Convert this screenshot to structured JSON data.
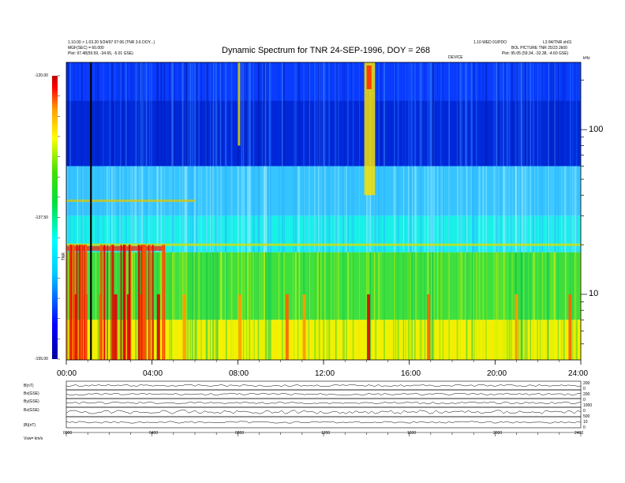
{
  "header": {
    "left_line1": "1.10.00 > 1.03.20 5/24/97 07:06 (TNR 3.6 DOY...)",
    "left_line2": "MGF(SEC) = 60.000",
    "left_line3": "Plot:  97.48(59.59, -34.65, -5.01 GSE)",
    "right_line1": "1.10 WED 01/PDO",
    "right_line2": "BOL PICTURE TNR 25/23 2k00",
    "right_line3": "Plot:  95.05 (59.34, -32.38, -4.60 GSE)",
    "right_id": "L3 84/TNR sh01",
    "mid_label": "DEVICE"
  },
  "chart_data": {
    "type": "heatmap",
    "title": "Dynamic Spectrum for TNR 24-SEP-1996, DOY = 268",
    "x_tick_labels": [
      "00:00",
      "04:00",
      "08:00",
      "12:00",
      "16:00",
      "20:00",
      "24:00"
    ],
    "x_ticks_hours": [
      0,
      4,
      8,
      12,
      16,
      20,
      24
    ],
    "xlim_hours": [
      0,
      24
    ],
    "y_scale": "log",
    "y_unit_label": "kHz",
    "y_tick_labels": [
      "100",
      "10"
    ],
    "y_ticks": [
      100,
      10
    ],
    "ylim": [
      4,
      256
    ],
    "colorbar": {
      "label": "TNR",
      "tick_labels": [
        "-120.00",
        "-137.50",
        "-155.00"
      ],
      "range": [
        -155,
        -120
      ],
      "colors": [
        "#0000a0",
        "#0000ff",
        "#00c8ff",
        "#00ffff",
        "#00e040",
        "#40e000",
        "#ffff00",
        "#ffa000",
        "#ff0000",
        "#c00000"
      ]
    },
    "bands": [
      {
        "f_low": 150,
        "f_high": 256,
        "level": -125,
        "color": "#0a3cff"
      },
      {
        "f_low": 60,
        "f_high": 150,
        "level": -126,
        "color": "#0028d8"
      },
      {
        "f_low": 30,
        "f_high": 60,
        "level": -133,
        "color": "#36c4ff"
      },
      {
        "f_low": 18,
        "f_high": 30,
        "level": -138,
        "color": "#18f0e8"
      },
      {
        "f_low": 7,
        "f_high": 18,
        "level": -142,
        "color": "#3ee040"
      },
      {
        "f_low": 4,
        "f_high": 7,
        "level": -150,
        "color": "#f2f000"
      }
    ],
    "events": [
      {
        "hour": 0.4,
        "level": -152
      },
      {
        "hour": 0.9,
        "level": -153
      },
      {
        "hour": 1.6,
        "level": -150
      },
      {
        "hour": 2.3,
        "level": -152
      },
      {
        "hour": 2.9,
        "level": -154
      },
      {
        "hour": 3.5,
        "level": -150
      },
      {
        "hour": 4.3,
        "level": -153
      },
      {
        "hour": 5.5,
        "level": -148
      },
      {
        "hour": 8.1,
        "level": -147
      },
      {
        "hour": 10.3,
        "level": -150
      },
      {
        "hour": 11.1,
        "level": -148
      },
      {
        "hour": 14.1,
        "level": -152
      },
      {
        "hour": 16.9,
        "level": -150
      },
      {
        "hour": 21.0,
        "level": -146
      },
      {
        "hour": 23.5,
        "level": -150
      }
    ],
    "burst_hours": [
      13.9,
      14.4
    ],
    "marker_hour": 1.15
  },
  "panels": {
    "labels": [
      "B(nT)",
      "Bx(GSE)",
      "By(GSE)",
      "Bz(GSE)",
      "|B|(nT)"
    ],
    "x_tick_labels": [
      "0000",
      "0400",
      "0800",
      "1200",
      "1600",
      "2000",
      "2400"
    ],
    "footer_label": "Vsw=  km/s",
    "right_scale_labels": [
      "200",
      "0",
      "200",
      "0",
      "1000",
      "0",
      "500",
      "10",
      "0"
    ]
  }
}
